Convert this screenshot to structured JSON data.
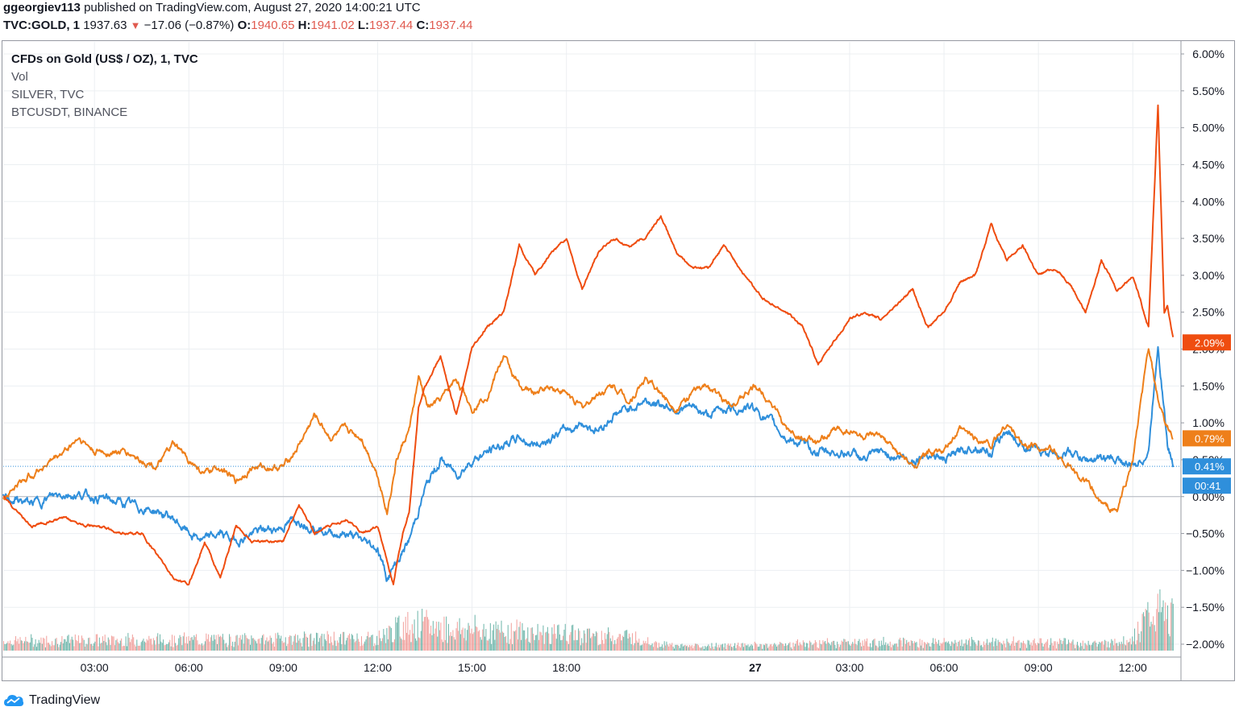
{
  "header": {
    "author": "ggeorgiev113",
    "published_text": "published on TradingView.com, August 27, 2020 14:00:21 UTC",
    "symbol": "TVC:GOLD, 1",
    "price": "1937.63",
    "change_icon": "down-triangle-icon",
    "change": "−17.06 (−0.87%)",
    "o_label": "O:",
    "o_value": "1940.65",
    "h_label": "H:",
    "h_value": "1941.02",
    "l_label": "L:",
    "l_value": "1937.44",
    "c_label": "C:",
    "c_value": "1937.44"
  },
  "legend": [
    "CFDs on Gold (US$ / OZ), 1, TVC",
    "Vol",
    "SILVER, TVC",
    "BTCUSDT, BINANCE"
  ],
  "footer": {
    "brand": "TradingView",
    "logo_icon": "tradingview-cloud-icon"
  },
  "colors": {
    "gold": "#2f8fdb",
    "silver": "#ef4d10",
    "btc": "#ee7f1a",
    "vol_up": "#52a89a",
    "vol_down": "#ef8e8a",
    "grid": "#eceff2"
  },
  "chart_data": {
    "type": "line",
    "ylabel": "",
    "xlabel": "",
    "y_unit": "%",
    "ylim": [
      -2.0,
      6.0
    ],
    "y_ticks": [
      "6.00%",
      "5.50%",
      "5.00%",
      "4.50%",
      "4.00%",
      "3.50%",
      "3.00%",
      "2.50%",
      "2.00%",
      "1.50%",
      "1.00%",
      "0.50%",
      "0.00%",
      "−0.50%",
      "−1.00%",
      "−1.50%",
      "−2.00%"
    ],
    "y_tick_values": [
      6.0,
      5.5,
      5.0,
      4.5,
      4.0,
      3.5,
      3.0,
      2.5,
      2.0,
      1.5,
      1.0,
      0.5,
      0.0,
      -0.5,
      -1.0,
      -1.5,
      -2.0
    ],
    "x_ticks": [
      "03:00",
      "06:00",
      "09:00",
      "12:00",
      "15:00",
      "18:00",
      "27",
      "03:00",
      "06:00",
      "09:00",
      "12:00"
    ],
    "x_tick_hours": [
      3,
      6,
      9,
      12,
      15,
      18,
      24,
      27,
      30,
      33,
      36
    ],
    "x_bold_label": "27",
    "xlim_hours": [
      0.1,
      37.3
    ],
    "grid": true,
    "series": [
      {
        "name": "SILVER, TVC",
        "color": "#ef4d10",
        "last_label": "2.09%",
        "x": [
          0.1,
          1.0,
          2.0,
          3.0,
          4.0,
          4.5,
          5.0,
          5.5,
          6.0,
          6.5,
          7.0,
          7.5,
          8.0,
          9.0,
          9.5,
          10.0,
          11.0,
          11.5,
          12.0,
          12.5,
          12.8,
          13.0,
          13.3,
          13.5,
          14.0,
          14.5,
          15.0,
          15.5,
          16.0,
          16.5,
          17.0,
          17.5,
          18.0,
          18.5,
          19.0,
          19.5,
          20.0,
          20.5,
          21.0,
          21.5,
          22.0,
          22.5,
          23.0,
          23.5,
          24.0,
          24.5,
          25.0,
          25.5,
          26.0,
          26.5,
          27.0,
          27.5,
          28.0,
          29.0,
          29.5,
          30.0,
          30.5,
          31.0,
          31.5,
          32.0,
          32.5,
          33.0,
          33.5,
          34.0,
          34.5,
          35.0,
          35.5,
          36.0,
          36.5,
          36.8,
          37.0,
          37.1,
          37.3
        ],
        "y": [
          0.0,
          -0.4,
          -0.3,
          -0.4,
          -0.5,
          -0.5,
          -0.8,
          -1.1,
          -1.2,
          -0.6,
          -1.1,
          -0.4,
          -0.6,
          -0.6,
          -0.1,
          -0.5,
          -0.3,
          -0.5,
          -0.4,
          -1.2,
          -0.5,
          -0.2,
          1.2,
          1.5,
          1.9,
          1.1,
          2.0,
          2.3,
          2.5,
          3.4,
          3.0,
          3.3,
          3.5,
          2.8,
          3.3,
          3.5,
          3.4,
          3.5,
          3.8,
          3.3,
          3.1,
          3.1,
          3.4,
          3.1,
          2.8,
          2.6,
          2.5,
          2.3,
          1.8,
          2.1,
          2.4,
          2.5,
          2.4,
          2.8,
          2.3,
          2.5,
          2.9,
          3.0,
          3.7,
          3.2,
          3.4,
          3.0,
          3.1,
          2.9,
          2.5,
          3.2,
          2.8,
          3.0,
          2.3,
          5.3,
          2.5,
          2.6,
          2.09
        ]
      },
      {
        "name": "BTCUSDT, BINANCE",
        "color": "#ee7f1a",
        "last_label": "0.79%",
        "x": [
          0.1,
          1.0,
          2.0,
          2.5,
          3.0,
          4.0,
          5.0,
          5.5,
          6.0,
          6.5,
          7.0,
          7.5,
          8.0,
          9.0,
          9.5,
          10.0,
          10.5,
          11.0,
          11.5,
          12.0,
          12.3,
          12.6,
          13.0,
          13.3,
          13.6,
          14.0,
          14.5,
          15.0,
          15.5,
          16.0,
          16.5,
          17.0,
          17.5,
          18.0,
          18.5,
          19.0,
          19.5,
          20.0,
          20.5,
          21.0,
          21.5,
          22.0,
          22.5,
          23.0,
          23.5,
          24.0,
          24.5,
          25.0,
          25.5,
          26.0,
          26.5,
          27.0,
          27.5,
          28.0,
          29.0,
          29.5,
          30.0,
          30.5,
          31.0,
          31.5,
          32.0,
          32.5,
          33.0,
          33.5,
          34.0,
          34.5,
          35.0,
          35.5,
          36.0,
          36.5,
          36.8,
          37.0,
          37.3
        ],
        "y": [
          0.0,
          0.3,
          0.6,
          0.8,
          0.6,
          0.6,
          0.4,
          0.7,
          0.5,
          0.3,
          0.4,
          0.2,
          0.4,
          0.4,
          0.7,
          1.1,
          0.8,
          0.9,
          0.8,
          0.3,
          -0.2,
          0.5,
          0.9,
          1.6,
          1.2,
          1.3,
          1.6,
          1.2,
          1.4,
          1.9,
          1.5,
          1.4,
          1.5,
          1.4,
          1.2,
          1.4,
          1.5,
          1.3,
          1.6,
          1.4,
          1.2,
          1.4,
          1.5,
          1.3,
          1.3,
          1.5,
          1.3,
          0.9,
          0.8,
          0.7,
          0.9,
          0.9,
          0.8,
          0.8,
          0.4,
          0.6,
          0.6,
          0.9,
          0.8,
          0.7,
          1.0,
          0.7,
          0.7,
          0.6,
          0.4,
          0.2,
          -0.1,
          -0.2,
          0.5,
          2.0,
          1.3,
          1.0,
          0.79
        ]
      },
      {
        "name": "CFDs on Gold (US$ / OZ), 1, TVC",
        "color": "#2f8fdb",
        "last_label": "0.41%",
        "timer_label": "00:41",
        "x": [
          0.1,
          1.0,
          2.0,
          3.0,
          4.0,
          5.0,
          5.5,
          6.0,
          6.5,
          7.0,
          7.5,
          8.0,
          9.0,
          9.5,
          10.0,
          10.5,
          11.0,
          11.5,
          12.0,
          12.3,
          12.6,
          13.0,
          13.5,
          14.0,
          14.5,
          15.0,
          15.5,
          16.0,
          16.5,
          17.0,
          17.5,
          18.0,
          18.5,
          19.0,
          19.5,
          20.0,
          20.5,
          21.0,
          21.5,
          22.0,
          22.5,
          23.0,
          23.5,
          24.0,
          24.5,
          25.0,
          25.5,
          26.0,
          26.5,
          27.0,
          27.5,
          28.0,
          29.0,
          29.5,
          30.0,
          30.5,
          31.0,
          31.5,
          32.0,
          32.5,
          33.0,
          33.5,
          34.0,
          34.5,
          35.0,
          35.5,
          36.0,
          36.5,
          36.8,
          37.0,
          37.1,
          37.3
        ],
        "y": [
          0.0,
          -0.1,
          0.05,
          0.0,
          -0.1,
          -0.2,
          -0.3,
          -0.5,
          -0.6,
          -0.5,
          -0.6,
          -0.5,
          -0.4,
          -0.3,
          -0.4,
          -0.5,
          -0.5,
          -0.6,
          -0.7,
          -1.1,
          -0.9,
          -0.6,
          0.1,
          0.5,
          0.3,
          0.5,
          0.6,
          0.7,
          0.8,
          0.7,
          0.8,
          0.9,
          1.0,
          0.9,
          1.1,
          1.2,
          1.3,
          1.25,
          1.2,
          1.2,
          1.1,
          1.2,
          1.2,
          1.2,
          1.0,
          0.8,
          0.7,
          0.6,
          0.6,
          0.6,
          0.5,
          0.6,
          0.5,
          0.6,
          0.5,
          0.6,
          0.7,
          0.6,
          0.9,
          0.7,
          0.6,
          0.6,
          0.6,
          0.5,
          0.5,
          0.5,
          0.4,
          0.6,
          2.1,
          1.2,
          0.7,
          0.41
        ]
      }
    ],
    "volume": {
      "name": "Vol",
      "profile_x": [
        0,
        12,
        13,
        14,
        18,
        20,
        21,
        22,
        25,
        27,
        31,
        33,
        35,
        36,
        36.6,
        37.3
      ],
      "profile_y": [
        0.18,
        0.25,
        0.6,
        0.5,
        0.35,
        0.3,
        0.1,
        0.05,
        0.1,
        0.15,
        0.15,
        0.15,
        0.12,
        0.25,
        0.9,
        0.7
      ]
    }
  }
}
